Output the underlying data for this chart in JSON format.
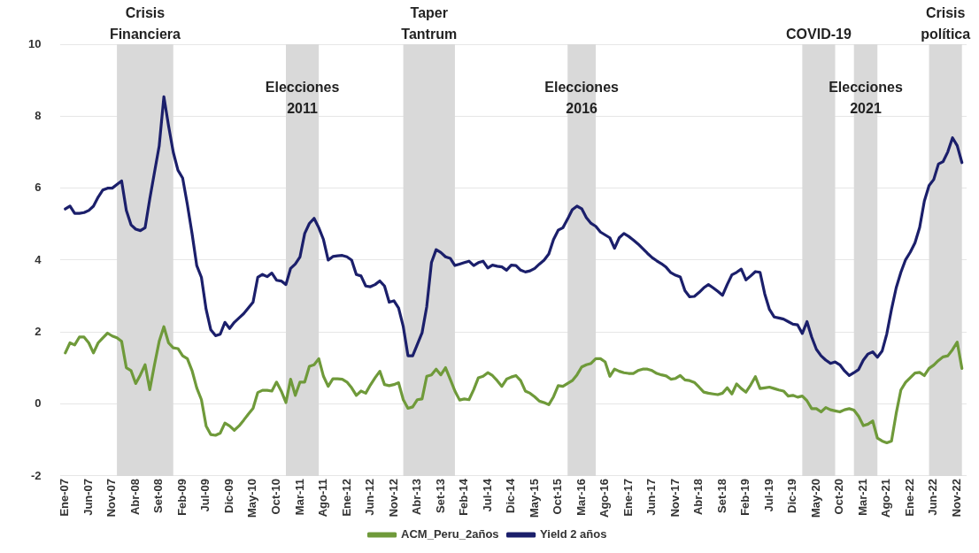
{
  "chart_data": {
    "type": "line",
    "x": [
      "2007-01",
      "2007-02",
      "2007-03",
      "2007-04",
      "2007-05",
      "2007-06",
      "2007-07",
      "2007-08",
      "2007-09",
      "2007-10",
      "2007-11",
      "2007-12",
      "2008-01",
      "2008-02",
      "2008-03",
      "2008-04",
      "2008-05",
      "2008-06",
      "2008-07",
      "2008-08",
      "2008-09",
      "2008-10",
      "2008-11",
      "2008-12",
      "2009-01",
      "2009-02",
      "2009-03",
      "2009-04",
      "2009-05",
      "2009-06",
      "2009-07",
      "2009-08",
      "2009-09",
      "2009-10",
      "2009-11",
      "2009-12",
      "2010-01",
      "2010-02",
      "2010-03",
      "2010-04",
      "2010-05",
      "2010-06",
      "2010-07",
      "2010-08",
      "2010-09",
      "2010-10",
      "2010-11",
      "2010-12",
      "2011-01",
      "2011-02",
      "2011-03",
      "2011-04",
      "2011-05",
      "2011-06",
      "2011-07",
      "2011-08",
      "2011-09",
      "2011-10",
      "2011-11",
      "2011-12",
      "2012-01",
      "2012-02",
      "2012-03",
      "2012-04",
      "2012-05",
      "2012-06",
      "2012-07",
      "2012-08",
      "2012-09",
      "2012-10",
      "2012-11",
      "2012-12",
      "2013-01",
      "2013-02",
      "2013-03",
      "2013-04",
      "2013-05",
      "2013-06",
      "2013-07",
      "2013-08",
      "2013-09",
      "2013-10",
      "2013-11",
      "2013-12",
      "2014-01",
      "2014-02",
      "2014-03",
      "2014-04",
      "2014-05",
      "2014-06",
      "2014-07",
      "2014-08",
      "2014-09",
      "2014-10",
      "2014-11",
      "2014-12",
      "2015-01",
      "2015-02",
      "2015-03",
      "2015-04",
      "2015-05",
      "2015-06",
      "2015-07",
      "2015-08",
      "2015-09",
      "2015-10",
      "2015-11",
      "2015-12",
      "2016-01",
      "2016-02",
      "2016-03",
      "2016-04",
      "2016-05",
      "2016-06",
      "2016-07",
      "2016-08",
      "2016-09",
      "2016-10",
      "2016-11",
      "2016-12",
      "2017-01",
      "2017-02",
      "2017-03",
      "2017-04",
      "2017-05",
      "2017-06",
      "2017-07",
      "2017-08",
      "2017-09",
      "2017-10",
      "2017-11",
      "2017-12",
      "2018-01",
      "2018-02",
      "2018-03",
      "2018-04",
      "2018-05",
      "2018-06",
      "2018-07",
      "2018-08",
      "2018-09",
      "2018-10",
      "2018-11",
      "2018-12",
      "2019-01",
      "2019-02",
      "2019-03",
      "2019-04",
      "2019-05",
      "2019-06",
      "2019-07",
      "2019-08",
      "2019-09",
      "2019-10",
      "2019-11",
      "2019-12",
      "2020-01",
      "2020-02",
      "2020-03",
      "2020-04",
      "2020-05",
      "2020-06",
      "2020-07",
      "2020-08",
      "2020-09",
      "2020-10",
      "2020-11",
      "2020-12",
      "2021-01",
      "2021-02",
      "2021-03",
      "2021-04",
      "2021-05",
      "2021-06",
      "2021-07",
      "2021-08",
      "2021-09",
      "2021-10",
      "2021-11",
      "2021-12",
      "2022-01",
      "2022-02",
      "2022-03",
      "2022-04",
      "2022-05",
      "2022-06",
      "2022-07",
      "2022-08",
      "2022-09",
      "2022-10",
      "2022-11",
      "2022-12"
    ],
    "series": [
      {
        "name": "ACM_Peru_2años",
        "color": "#6f9a3a",
        "values": [
          1.42,
          1.7,
          1.64,
          1.86,
          1.86,
          1.7,
          1.42,
          1.7,
          1.84,
          1.97,
          1.89,
          1.84,
          1.74,
          1.01,
          0.93,
          0.57,
          0.81,
          1.09,
          0.4,
          1.09,
          1.74,
          2.15,
          1.7,
          1.56,
          1.54,
          1.34,
          1.26,
          0.93,
          0.45,
          0.12,
          -0.61,
          -0.85,
          -0.87,
          -0.81,
          -0.53,
          -0.61,
          -0.73,
          -0.61,
          -0.45,
          -0.28,
          -0.12,
          0.32,
          0.38,
          0.38,
          0.36,
          0.61,
          0.36,
          0.04,
          0.69,
          0.24,
          0.61,
          0.61,
          1.05,
          1.09,
          1.26,
          0.77,
          0.49,
          0.7,
          0.7,
          0.69,
          0.61,
          0.45,
          0.24,
          0.36,
          0.3,
          0.53,
          0.73,
          0.91,
          0.54,
          0.51,
          0.54,
          0.59,
          0.12,
          -0.12,
          -0.08,
          0.12,
          0.14,
          0.77,
          0.81,
          0.97,
          0.81,
          1.01,
          0.69,
          0.36,
          0.11,
          0.14,
          0.12,
          0.4,
          0.73,
          0.77,
          0.87,
          0.79,
          0.65,
          0.49,
          0.69,
          0.75,
          0.79,
          0.65,
          0.36,
          0.3,
          0.2,
          0.08,
          0.04,
          -0.02,
          0.2,
          0.51,
          0.49,
          0.57,
          0.65,
          0.81,
          1.03,
          1.09,
          1.13,
          1.26,
          1.26,
          1.17,
          0.77,
          0.97,
          0.91,
          0.87,
          0.85,
          0.85,
          0.93,
          0.97,
          0.97,
          0.93,
          0.85,
          0.81,
          0.78,
          0.69,
          0.71,
          0.79,
          0.67,
          0.65,
          0.6,
          0.47,
          0.33,
          0.3,
          0.28,
          0.26,
          0.3,
          0.45,
          0.28,
          0.56,
          0.43,
          0.33,
          0.53,
          0.76,
          0.43,
          0.45,
          0.47,
          0.43,
          0.39,
          0.36,
          0.22,
          0.24,
          0.19,
          0.22,
          0.09,
          -0.13,
          -0.13,
          -0.22,
          -0.1,
          -0.16,
          -0.19,
          -0.22,
          -0.16,
          -0.13,
          -0.17,
          -0.34,
          -0.6,
          -0.56,
          -0.47,
          -0.95,
          -1.03,
          -1.08,
          -1.03,
          -0.26,
          0.39,
          0.6,
          0.73,
          0.86,
          0.88,
          0.79,
          0.99,
          1.08,
          1.21,
          1.31,
          1.34,
          1.51,
          1.72,
          0.99
        ]
      },
      {
        "name": "Yield 2 años",
        "color": "#1b1f6b",
        "values": [
          5.42,
          5.5,
          5.3,
          5.3,
          5.32,
          5.38,
          5.5,
          5.75,
          5.95,
          6.0,
          6.0,
          6.1,
          6.2,
          5.38,
          4.98,
          4.86,
          4.82,
          4.9,
          5.7,
          6.44,
          7.17,
          8.54,
          7.73,
          7.0,
          6.5,
          6.28,
          5.55,
          4.74,
          3.85,
          3.52,
          2.63,
          2.06,
          1.9,
          1.94,
          2.27,
          2.1,
          2.27,
          2.39,
          2.51,
          2.67,
          2.83,
          3.52,
          3.6,
          3.54,
          3.64,
          3.44,
          3.42,
          3.32,
          3.77,
          3.89,
          4.09,
          4.74,
          5.02,
          5.16,
          4.9,
          4.57,
          4.0,
          4.1,
          4.12,
          4.13,
          4.09,
          4.0,
          3.6,
          3.56,
          3.28,
          3.26,
          3.32,
          3.42,
          3.28,
          2.83,
          2.87,
          2.67,
          2.15,
          1.34,
          1.34,
          1.66,
          1.98,
          2.71,
          3.93,
          4.29,
          4.21,
          4.09,
          4.05,
          3.85,
          3.89,
          3.93,
          3.97,
          3.85,
          3.93,
          3.97,
          3.78,
          3.86,
          3.83,
          3.81,
          3.72,
          3.86,
          3.85,
          3.72,
          3.67,
          3.7,
          3.77,
          3.89,
          4.0,
          4.17,
          4.57,
          4.83,
          4.9,
          5.14,
          5.4,
          5.5,
          5.43,
          5.18,
          5.02,
          4.94,
          4.78,
          4.7,
          4.62,
          4.33,
          4.62,
          4.74,
          4.66,
          4.56,
          4.45,
          4.32,
          4.19,
          4.07,
          3.98,
          3.9,
          3.8,
          3.65,
          3.58,
          3.53,
          3.15,
          2.98,
          2.99,
          3.1,
          3.23,
          3.32,
          3.23,
          3.13,
          3.02,
          3.32,
          3.59,
          3.66,
          3.75,
          3.45,
          3.56,
          3.68,
          3.66,
          3.06,
          2.63,
          2.42,
          2.39,
          2.36,
          2.29,
          2.22,
          2.2,
          1.96,
          2.29,
          1.86,
          1.52,
          1.34,
          1.22,
          1.13,
          1.17,
          1.09,
          0.92,
          0.79,
          0.87,
          0.96,
          1.22,
          1.39,
          1.45,
          1.3,
          1.47,
          1.95,
          2.63,
          3.23,
          3.66,
          4.01,
          4.22,
          4.48,
          4.91,
          5.64,
          6.07,
          6.24,
          6.67,
          6.74,
          7.01,
          7.4,
          7.18,
          6.71
        ]
      }
    ],
    "xlim": [
      "2006-12",
      "2023-01"
    ],
    "xticks": [
      {
        "value": "2007-01",
        "label": "Ene-07"
      },
      {
        "value": "2007-06",
        "label": "Jun-07"
      },
      {
        "value": "2007-11",
        "label": "Nov-07"
      },
      {
        "value": "2008-04",
        "label": "Abr-08"
      },
      {
        "value": "2008-09",
        "label": "Set-08"
      },
      {
        "value": "2009-02",
        "label": "Feb-09"
      },
      {
        "value": "2009-07",
        "label": "Jul-09"
      },
      {
        "value": "2009-12",
        "label": "Dic-09"
      },
      {
        "value": "2010-05",
        "label": "May-10"
      },
      {
        "value": "2010-10",
        "label": "Oct-10"
      },
      {
        "value": "2011-03",
        "label": "Mar-11"
      },
      {
        "value": "2011-08",
        "label": "Ago-11"
      },
      {
        "value": "2012-01",
        "label": "Ene-12"
      },
      {
        "value": "2012-06",
        "label": "Jun-12"
      },
      {
        "value": "2012-11",
        "label": "Nov-12"
      },
      {
        "value": "2013-04",
        "label": "Abr-13"
      },
      {
        "value": "2013-09",
        "label": "Set-13"
      },
      {
        "value": "2014-02",
        "label": "Feb-14"
      },
      {
        "value": "2014-07",
        "label": "Jul-14"
      },
      {
        "value": "2014-12",
        "label": "Dic-14"
      },
      {
        "value": "2015-05",
        "label": "May-15"
      },
      {
        "value": "2015-10",
        "label": "Oct-15"
      },
      {
        "value": "2016-03",
        "label": "Mar-16"
      },
      {
        "value": "2016-08",
        "label": "Ago-16"
      },
      {
        "value": "2017-01",
        "label": "Ene-17"
      },
      {
        "value": "2017-06",
        "label": "Jun-17"
      },
      {
        "value": "2017-11",
        "label": "Nov-17"
      },
      {
        "value": "2018-04",
        "label": "Abr-18"
      },
      {
        "value": "2018-09",
        "label": "Set-18"
      },
      {
        "value": "2019-02",
        "label": "Feb-19"
      },
      {
        "value": "2019-07",
        "label": "Jul-19"
      },
      {
        "value": "2019-12",
        "label": "Dic-19"
      },
      {
        "value": "2020-05",
        "label": "May-20"
      },
      {
        "value": "2020-10",
        "label": "Oct-20"
      },
      {
        "value": "2021-03",
        "label": "Mar-21"
      },
      {
        "value": "2021-08",
        "label": "Ago-21"
      },
      {
        "value": "2022-01",
        "label": "Ene-22"
      },
      {
        "value": "2022-06",
        "label": "Jun-22"
      },
      {
        "value": "2022-11",
        "label": "Nov-22"
      }
    ],
    "ylim": [
      -2,
      10
    ],
    "yticks": [
      -2,
      0,
      2,
      4,
      6,
      8,
      10
    ],
    "grid": "y",
    "legend": "bottom",
    "line_style": "solid",
    "bands": [
      {
        "axis": "x",
        "from": "2007-12",
        "to": "2008-12",
        "label": "Crisis Financiera",
        "color": "#d9d9d9"
      },
      {
        "axis": "x",
        "from": "2010-12",
        "to": "2011-07",
        "label": "Elecciones 2011",
        "color": "#d9d9d9"
      },
      {
        "axis": "x",
        "from": "2013-01",
        "to": "2013-12",
        "label": "Taper Tantrum",
        "color": "#d9d9d9"
      },
      {
        "axis": "x",
        "from": "2015-12",
        "to": "2016-06",
        "label": "Elecciones 2016",
        "color": "#d9d9d9"
      },
      {
        "axis": "x",
        "from": "2020-02",
        "to": "2020-09",
        "label": "COVID-19",
        "color": "#d9d9d9"
      },
      {
        "axis": "x",
        "from": "2021-01",
        "to": "2021-06",
        "label": "Elecciones 2021",
        "color": "#d9d9d9"
      },
      {
        "axis": "x",
        "from": "2022-05",
        "to": "2022-12",
        "label": "Crisis política",
        "color": "#d9d9d9"
      }
    ]
  }
}
